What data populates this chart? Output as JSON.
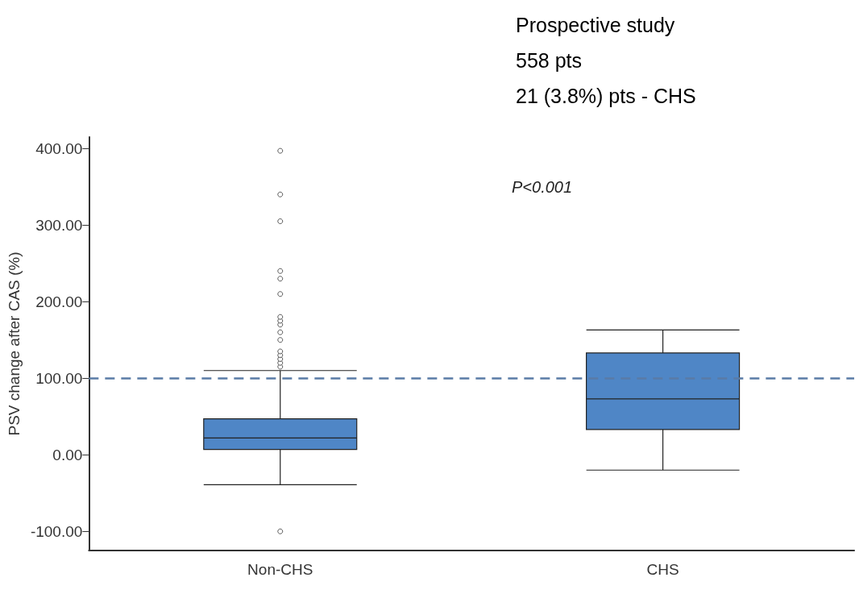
{
  "chart_data": {
    "type": "box",
    "ylabel": "PSV change after CAS (%)",
    "categories": [
      "Non-CHS",
      "CHS"
    ],
    "boxes": [
      {
        "low": -39,
        "q1": 7,
        "median": 22,
        "q3": 47,
        "high": 110,
        "outliers": [
          -100,
          115,
          120,
          125,
          130,
          135,
          150,
          160,
          170,
          175,
          180,
          210,
          230,
          240,
          305,
          340,
          397
        ]
      },
      {
        "low": -20,
        "q1": 33,
        "median": 73,
        "q3": 133,
        "high": 163
      }
    ],
    "color": "#4f86c6",
    "ylim": [
      -125,
      415
    ],
    "yticks": [
      {
        "value": -100,
        "label": "-100.00"
      },
      {
        "value": 0,
        "label": "0.00"
      },
      {
        "value": 100,
        "label": "100.00"
      },
      {
        "value": 200,
        "label": "200.00"
      },
      {
        "value": 300,
        "label": "300.00"
      },
      {
        "value": 400,
        "label": "400.00"
      }
    ],
    "ref_lines": [
      {
        "axis": "y",
        "value": 100,
        "color": "#5a7ba6",
        "line_style": "dashed"
      }
    ],
    "grid": false,
    "annotations": [
      "Prospective study",
      "558 pts",
      "21 (3.8%) pts - CHS",
      "P<0.001"
    ]
  }
}
